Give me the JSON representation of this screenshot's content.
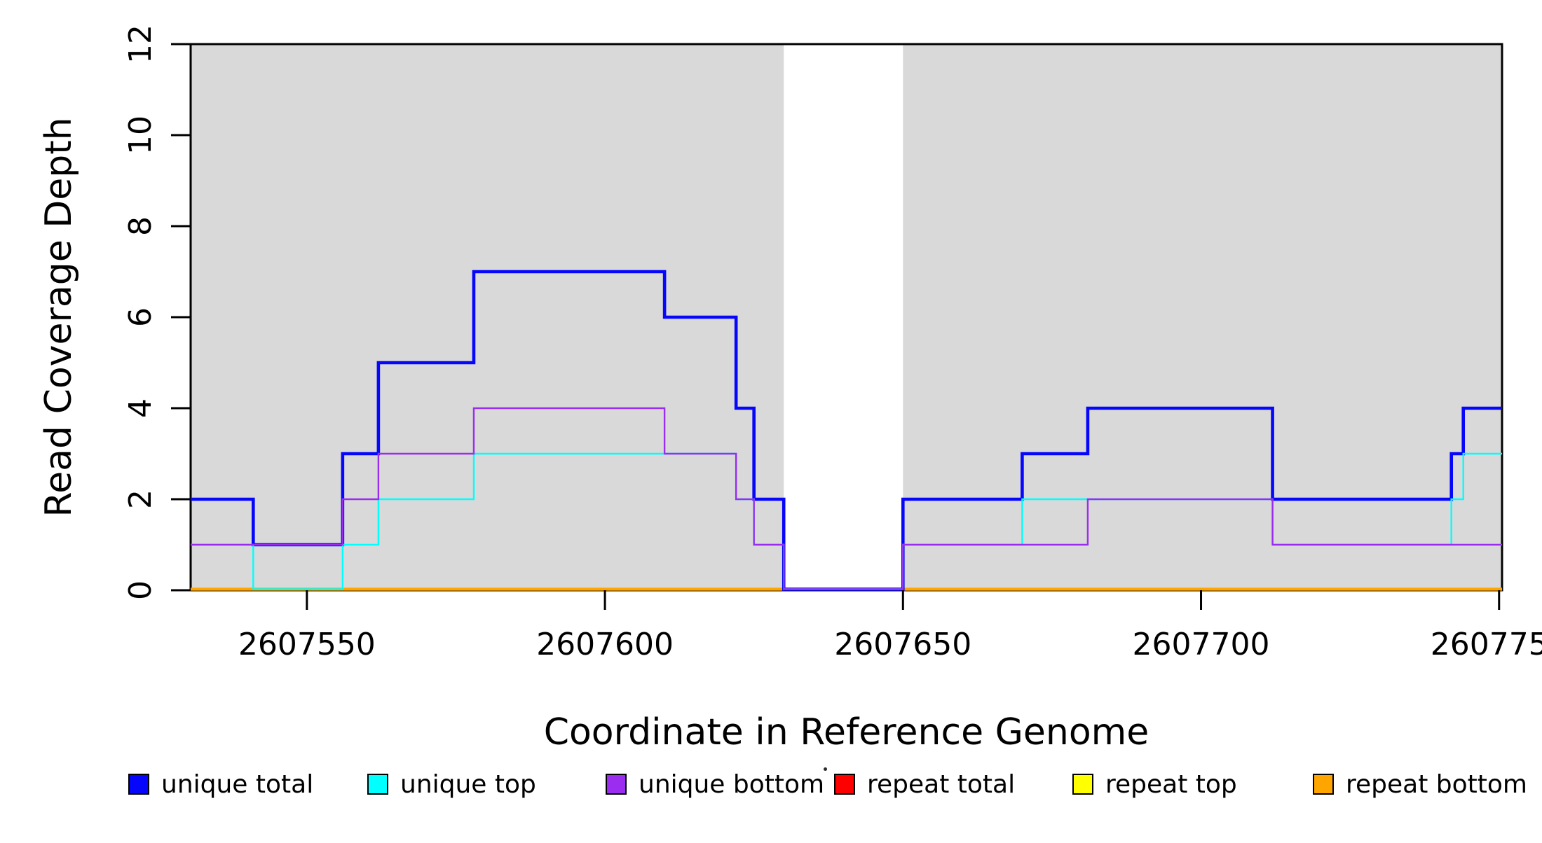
{
  "chart_data": {
    "type": "line",
    "subtype": "step-post",
    "title": "",
    "xlabel": "Coordinate in Reference Genome",
    "ylabel": "Read Coverage Depth",
    "xlim": [
      2607530.5,
      2607750.5
    ],
    "ylim": [
      0,
      12
    ],
    "x_ticks": [
      2607550,
      2607600,
      2607650,
      2607700,
      2607750
    ],
    "y_ticks": [
      0,
      2,
      4,
      6,
      8,
      10,
      12
    ],
    "grid": false,
    "legend_position": "bottom",
    "shaded_regions": {
      "color": "#D9D9D9",
      "x_ranges": [
        [
          2607530.5,
          2607630
        ],
        [
          2607650,
          2607750.5
        ]
      ]
    },
    "series": [
      {
        "name": "repeat total",
        "color": "#FF0000",
        "width": 2.4,
        "segments": [
          {
            "steps": [
              [
                2607530.5,
                0
              ]
            ],
            "end": 2607630
          },
          {
            "steps": [
              [
                2607650,
                0
              ]
            ],
            "end": 2607750.5
          }
        ]
      },
      {
        "name": "repeat top",
        "color": "#FFFF00",
        "width": 2.4,
        "segments": [
          {
            "steps": [
              [
                2607530.5,
                0
              ]
            ],
            "end": 2607630
          },
          {
            "steps": [
              [
                2607650,
                0
              ]
            ],
            "end": 2607750.5
          }
        ]
      },
      {
        "name": "repeat bottom",
        "color": "#FFA500",
        "width": 4.2,
        "segments": [
          {
            "steps": [
              [
                2607530.5,
                0
              ]
            ],
            "end": 2607630
          },
          {
            "steps": [
              [
                2607650,
                0
              ]
            ],
            "end": 2607750.5
          }
        ]
      },
      {
        "name": "unique total",
        "color": "#0606FA",
        "width": 4.6,
        "segments": [
          {
            "steps": [
              [
                2607530.5,
                2
              ],
              [
                2607541,
                1
              ],
              [
                2607556,
                3
              ],
              [
                2607562,
                5
              ],
              [
                2607578,
                7
              ],
              [
                2607610,
                6
              ],
              [
                2607622,
                4
              ],
              [
                2607625,
                2
              ],
              [
                2607630,
                0
              ],
              [
                2607650,
                2
              ],
              [
                2607670,
                3
              ],
              [
                2607681,
                4
              ],
              [
                2607712,
                2
              ],
              [
                2607742,
                3
              ],
              [
                2607744,
                4
              ]
            ],
            "end": 2607750.5
          }
        ]
      },
      {
        "name": "unique top",
        "color": "#00FFFF",
        "width": 2.4,
        "segments": [
          {
            "steps": [
              [
                2607530.5,
                1
              ],
              [
                2607541,
                0
              ],
              [
                2607556,
                1
              ],
              [
                2607562,
                2
              ],
              [
                2607578,
                3
              ],
              [
                2607622,
                2
              ],
              [
                2607625,
                1
              ],
              [
                2607630,
                0
              ],
              [
                2607650,
                1
              ],
              [
                2607670,
                2
              ],
              [
                2607712,
                1
              ],
              [
                2607742,
                2
              ],
              [
                2607744,
                3
              ]
            ],
            "end": 2607750.5
          }
        ]
      },
      {
        "name": "unique bottom",
        "color": "#9B2DF0",
        "width": 2.4,
        "segments": [
          {
            "steps": [
              [
                2607530.5,
                1
              ],
              [
                2607556,
                2
              ],
              [
                2607562,
                3
              ],
              [
                2607578,
                4
              ],
              [
                2607610,
                3
              ],
              [
                2607622,
                2
              ],
              [
                2607625,
                1
              ],
              [
                2607630,
                0
              ],
              [
                2607650,
                1
              ],
              [
                2607681,
                2
              ],
              [
                2607712,
                1
              ]
            ],
            "end": 2607750.5
          }
        ]
      }
    ]
  },
  "legend": {
    "items": [
      {
        "label": "unique total",
        "color": "#0606FA"
      },
      {
        "label": "unique top",
        "color": "#00FFFF"
      },
      {
        "label": "unique bottom",
        "color": "#9B2DF0"
      },
      {
        "label": "repeat total",
        "color": "#FF0000"
      },
      {
        "label": "repeat top",
        "color": "#FFFF00"
      },
      {
        "label": "repeat bottom",
        "color": "#FFA500"
      }
    ]
  },
  "axis_colors": {
    "line": "#000000",
    "text": "#000000"
  }
}
